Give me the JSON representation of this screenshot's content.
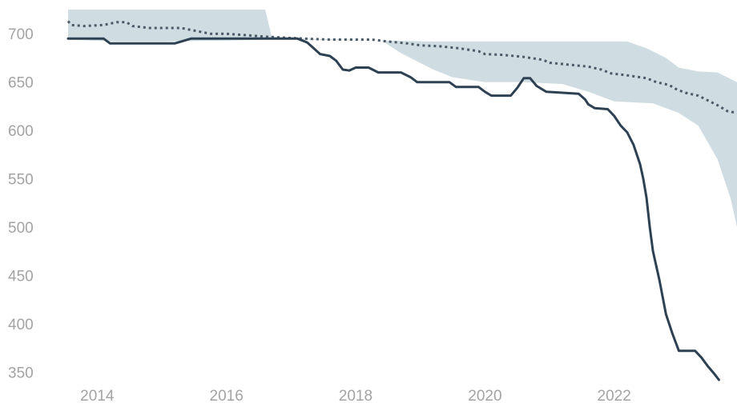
{
  "chart_data": {
    "type": "line",
    "title": "",
    "xlabel": "",
    "ylabel": "",
    "xlim": [
      2013.55,
      2023.9
    ],
    "ylim": [
      342,
      725
    ],
    "grid": false,
    "legend": "none",
    "x_ticks": [
      {
        "value": 2014,
        "label": "2014"
      },
      {
        "value": 2016,
        "label": "2016"
      },
      {
        "value": 2018,
        "label": "2018"
      },
      {
        "value": 2020,
        "label": "2020"
      },
      {
        "value": 2022,
        "label": "2022"
      }
    ],
    "y_ticks": [
      {
        "value": 350,
        "label": "350"
      },
      {
        "value": 400,
        "label": "400"
      },
      {
        "value": 450,
        "label": "450"
      },
      {
        "value": 500,
        "label": "500"
      },
      {
        "value": 550,
        "label": "550"
      },
      {
        "value": 600,
        "label": "600"
      },
      {
        "value": 650,
        "label": "650"
      },
      {
        "value": 700,
        "label": "700"
      }
    ],
    "band": {
      "color": "#cfdde2",
      "upper": [
        [
          2013.55,
          725
        ],
        [
          2016.6,
          725
        ],
        [
          2016.7,
          697
        ],
        [
          2017.2,
          695
        ],
        [
          2018.4,
          693
        ],
        [
          2019.2,
          692
        ],
        [
          2019.8,
          692
        ],
        [
          2020.4,
          692
        ],
        [
          2021.0,
          692
        ],
        [
          2021.6,
          692
        ],
        [
          2022.2,
          692
        ],
        [
          2022.5,
          685
        ],
        [
          2022.8,
          675
        ],
        [
          2023.0,
          665
        ],
        [
          2023.3,
          661
        ],
        [
          2023.6,
          660
        ],
        [
          2023.9,
          650
        ]
      ],
      "lower": [
        [
          2023.9,
          500
        ],
        [
          2023.8,
          530
        ],
        [
          2023.6,
          570
        ],
        [
          2023.3,
          605
        ],
        [
          2023.0,
          618
        ],
        [
          2022.6,
          628
        ],
        [
          2022.0,
          630
        ],
        [
          2021.6,
          640
        ],
        [
          2021.2,
          648
        ],
        [
          2020.6,
          650
        ],
        [
          2020.0,
          650
        ],
        [
          2019.5,
          655
        ],
        [
          2019.2,
          663
        ],
        [
          2018.7,
          680
        ],
        [
          2018.4,
          693
        ],
        [
          2017.2,
          694
        ],
        [
          2016.6,
          694
        ],
        [
          2016.0,
          693
        ],
        [
          2015.0,
          692
        ],
        [
          2014.3,
          692
        ],
        [
          2013.55,
          694
        ]
      ]
    },
    "series": [
      {
        "style": "solid",
        "color": "#2d4152",
        "points": [
          [
            2013.55,
            695
          ],
          [
            2014.1,
            695
          ],
          [
            2014.2,
            690
          ],
          [
            2014.9,
            690
          ],
          [
            2015.2,
            690
          ],
          [
            2015.3,
            692
          ],
          [
            2015.45,
            695
          ],
          [
            2015.7,
            695
          ],
          [
            2016.5,
            695
          ],
          [
            2017.1,
            695
          ],
          [
            2017.25,
            691
          ],
          [
            2017.35,
            685
          ],
          [
            2017.45,
            679
          ],
          [
            2017.6,
            677
          ],
          [
            2017.7,
            672
          ],
          [
            2017.8,
            663
          ],
          [
            2017.9,
            662
          ],
          [
            2018.0,
            665
          ],
          [
            2018.2,
            665
          ],
          [
            2018.35,
            660
          ],
          [
            2018.7,
            660
          ],
          [
            2018.85,
            655
          ],
          [
            2018.95,
            650
          ],
          [
            2019.2,
            650
          ],
          [
            2019.45,
            650
          ],
          [
            2019.55,
            645
          ],
          [
            2019.9,
            645
          ],
          [
            2020.0,
            640
          ],
          [
            2020.1,
            636
          ],
          [
            2020.4,
            636
          ],
          [
            2020.5,
            644
          ],
          [
            2020.6,
            654
          ],
          [
            2020.7,
            654
          ],
          [
            2020.8,
            646
          ],
          [
            2020.95,
            640
          ],
          [
            2021.2,
            639
          ],
          [
            2021.45,
            638
          ],
          [
            2021.55,
            632
          ],
          [
            2021.6,
            627
          ],
          [
            2021.7,
            623
          ],
          [
            2021.9,
            622
          ],
          [
            2022.0,
            615
          ],
          [
            2022.1,
            605
          ],
          [
            2022.2,
            598
          ],
          [
            2022.3,
            585
          ],
          [
            2022.4,
            565
          ],
          [
            2022.45,
            550
          ],
          [
            2022.5,
            530
          ],
          [
            2022.55,
            500
          ],
          [
            2022.6,
            475
          ],
          [
            2022.7,
            445
          ],
          [
            2022.8,
            410
          ],
          [
            2022.9,
            390
          ],
          [
            2023.0,
            372
          ],
          [
            2023.25,
            372
          ],
          [
            2023.35,
            365
          ],
          [
            2023.45,
            356
          ],
          [
            2023.55,
            348
          ],
          [
            2023.62,
            342
          ]
        ]
      },
      {
        "style": "dotted",
        "color": "#4a5a67",
        "points": [
          [
            2013.55,
            713
          ],
          [
            2013.6,
            709
          ],
          [
            2013.8,
            708
          ],
          [
            2014.1,
            709
          ],
          [
            2014.3,
            712
          ],
          [
            2014.45,
            712
          ],
          [
            2014.55,
            708
          ],
          [
            2014.8,
            706
          ],
          [
            2015.0,
            706
          ],
          [
            2015.3,
            706
          ],
          [
            2015.45,
            704
          ],
          [
            2015.6,
            702
          ],
          [
            2015.75,
            700
          ],
          [
            2016.0,
            700
          ],
          [
            2016.2,
            699
          ],
          [
            2016.6,
            697
          ],
          [
            2016.9,
            696
          ],
          [
            2017.2,
            695
          ],
          [
            2017.6,
            694
          ],
          [
            2018.0,
            694
          ],
          [
            2018.25,
            694
          ],
          [
            2018.5,
            692
          ],
          [
            2018.8,
            690
          ],
          [
            2019.0,
            688
          ],
          [
            2019.3,
            687
          ],
          [
            2019.6,
            685
          ],
          [
            2019.9,
            682
          ],
          [
            2020.0,
            679
          ],
          [
            2020.3,
            678
          ],
          [
            2020.6,
            676
          ],
          [
            2020.9,
            673
          ],
          [
            2021.0,
            670
          ],
          [
            2021.3,
            668
          ],
          [
            2021.6,
            666
          ],
          [
            2021.8,
            663
          ],
          [
            2021.95,
            659
          ],
          [
            2022.2,
            657
          ],
          [
            2022.5,
            654
          ],
          [
            2022.65,
            650
          ],
          [
            2022.85,
            647
          ],
          [
            2022.95,
            643
          ],
          [
            2023.1,
            639
          ],
          [
            2023.3,
            636
          ],
          [
            2023.45,
            631
          ],
          [
            2023.6,
            626
          ],
          [
            2023.75,
            620
          ],
          [
            2023.9,
            618
          ]
        ]
      }
    ]
  }
}
